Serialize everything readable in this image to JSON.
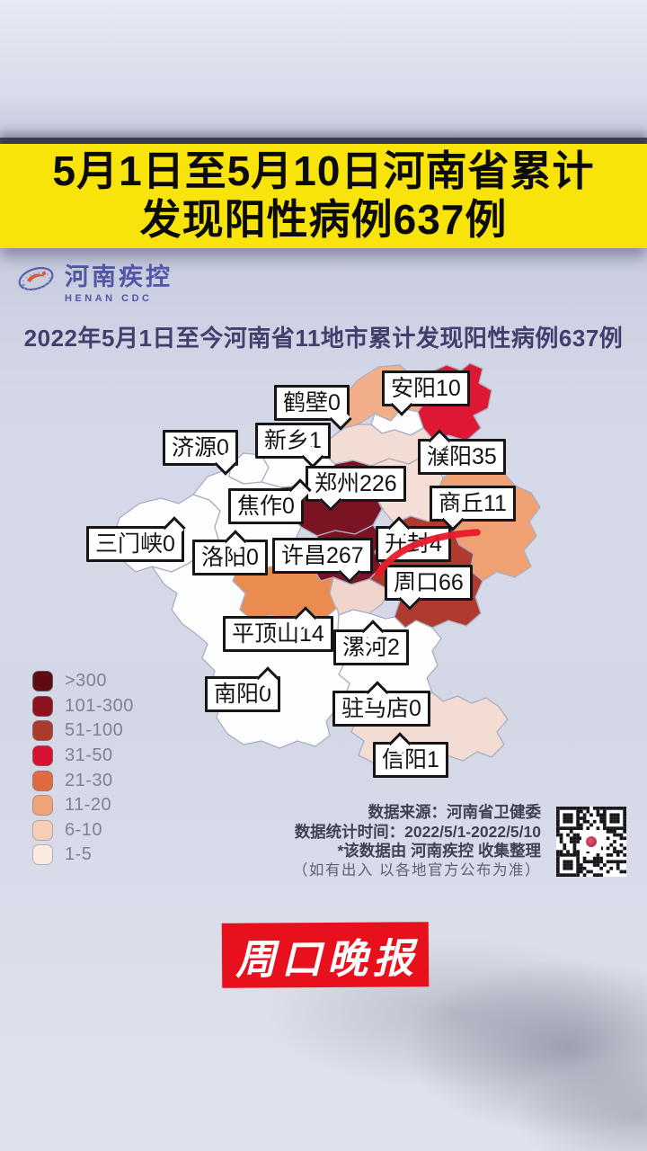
{
  "banner": {
    "line1": "5月1日至5月10日河南省累计",
    "line2": "发现阳性病例637例",
    "bg_color": "#f8e40a"
  },
  "logo": {
    "name_cn": "河南疾控",
    "name_en": "HENAN CDC",
    "color": "#5256a6"
  },
  "map": {
    "title": "2022年5月1日至今河南省11地市累计发现阳性病例637例",
    "cities": [
      {
        "name": "鹤壁",
        "value": 0,
        "label": "鹤壁0"
      },
      {
        "name": "安阳",
        "value": 10,
        "label": "安阳10"
      },
      {
        "name": "济源",
        "value": 0,
        "label": "济源0"
      },
      {
        "name": "新乡",
        "value": 1,
        "label": "新乡1"
      },
      {
        "name": "濮阳",
        "value": 35,
        "label": "濮阳35"
      },
      {
        "name": "郑州",
        "value": 226,
        "label": "郑州226"
      },
      {
        "name": "焦作",
        "value": 0,
        "label": "焦作0"
      },
      {
        "name": "商丘",
        "value": 11,
        "label": "商丘11"
      },
      {
        "name": "三门峡",
        "value": 0,
        "label": "三门峡0"
      },
      {
        "name": "洛阳",
        "value": 0,
        "label": "洛阳0"
      },
      {
        "name": "许昌",
        "value": 267,
        "label": "许昌267"
      },
      {
        "name": "开封",
        "value": 4,
        "label": "开封4"
      },
      {
        "name": "周口",
        "value": 66,
        "label": "周口66"
      },
      {
        "name": "平顶山",
        "value": 14,
        "label": "平顶山14"
      },
      {
        "name": "漯河",
        "value": 2,
        "label": "漯河2"
      },
      {
        "name": "南阳",
        "value": 0,
        "label": "南阳0"
      },
      {
        "name": "驻马店",
        "value": 0,
        "label": "驻马店0"
      },
      {
        "name": "信阳",
        "value": 1,
        "label": "信阳1"
      }
    ],
    "regions": {
      "anyang": {
        "color": "#f2ae88"
      },
      "puyang": {
        "color": "#dd1734"
      },
      "hebi": {
        "color": "#fdfdfe"
      },
      "xinxiang": {
        "color": "#f2dcd3"
      },
      "jiyuan": {
        "color": "#fdfdfe"
      },
      "jiaozuo": {
        "color": "#fdfdfe"
      },
      "zhengzhou": {
        "color": "#7b1422"
      },
      "kaifeng": {
        "color": "#f4ded6"
      },
      "shangqiu": {
        "color": "#f0a173"
      },
      "sanmenxia": {
        "color": "#fdfdfe"
      },
      "luoyang": {
        "color": "#fdfdfe"
      },
      "xuchang": {
        "color": "#7b1422"
      },
      "zhoukou": {
        "color": "#ae3a30"
      },
      "pingdingshan": {
        "color": "#ea8c50"
      },
      "luohe": {
        "color": "#efd5cc"
      },
      "nanyang": {
        "color": "#fdfdfe"
      },
      "zhumadian": {
        "color": "#fdfdfe"
      },
      "xinyang": {
        "color": "#f2dcd4"
      }
    },
    "highlight_color": "#e81a2b"
  },
  "legend": {
    "bins": [
      {
        "label": ">300",
        "color": "#5e0b16"
      },
      {
        "label": "101-300",
        "color": "#8c1220"
      },
      {
        "label": "51-100",
        "color": "#aa3a2c"
      },
      {
        "label": "31-50",
        "color": "#d5122f"
      },
      {
        "label": "21-30",
        "color": "#e06a40"
      },
      {
        "label": "11-20",
        "color": "#f0a475"
      },
      {
        "label": "6-10",
        "color": "#f8cfb6"
      },
      {
        "label": "1-5",
        "color": "#faeadf"
      }
    ]
  },
  "source": {
    "line1": "数据来源：河南省卫健委",
    "line2": "数据统计时间：2022/5/1-2022/5/10",
    "line3": "*该数据由 河南疾控 收集整理",
    "line4": "（如有出入 以各地官方公布为准）"
  },
  "footer": {
    "logo_text": "周口晚报",
    "bg_color": "#e8101c"
  },
  "chart_data": {
    "type": "heatmap",
    "subtype": "choropleth-map",
    "title": "2022年5月1日至今河南省11地市累计发现阳性病例637例",
    "banner_title": "5月1日至5月10日河南省累计发现阳性病例637例",
    "region": "河南省",
    "total": 637,
    "unit": "例",
    "date_range": "2022/5/1-2022/5/10",
    "categories": [
      "鹤壁",
      "安阳",
      "济源",
      "新乡",
      "濮阳",
      "郑州",
      "焦作",
      "商丘",
      "三门峡",
      "洛阳",
      "许昌",
      "开封",
      "周口",
      "平顶山",
      "漯河",
      "南阳",
      "驻马店",
      "信阳"
    ],
    "values": [
      0,
      10,
      0,
      1,
      35,
      226,
      0,
      11,
      0,
      0,
      267,
      4,
      66,
      14,
      2,
      0,
      0,
      1
    ],
    "legend_bins": [
      ">300",
      "101-300",
      "51-100",
      "31-50",
      "21-30",
      "11-20",
      "6-10",
      "1-5"
    ],
    "legend_colors": [
      "#5e0b16",
      "#8c1220",
      "#aa3a2c",
      "#d5122f",
      "#e06a40",
      "#f0a475",
      "#f8cfb6",
      "#faeadf"
    ],
    "legend_position": "bottom-left",
    "grid": false
  }
}
